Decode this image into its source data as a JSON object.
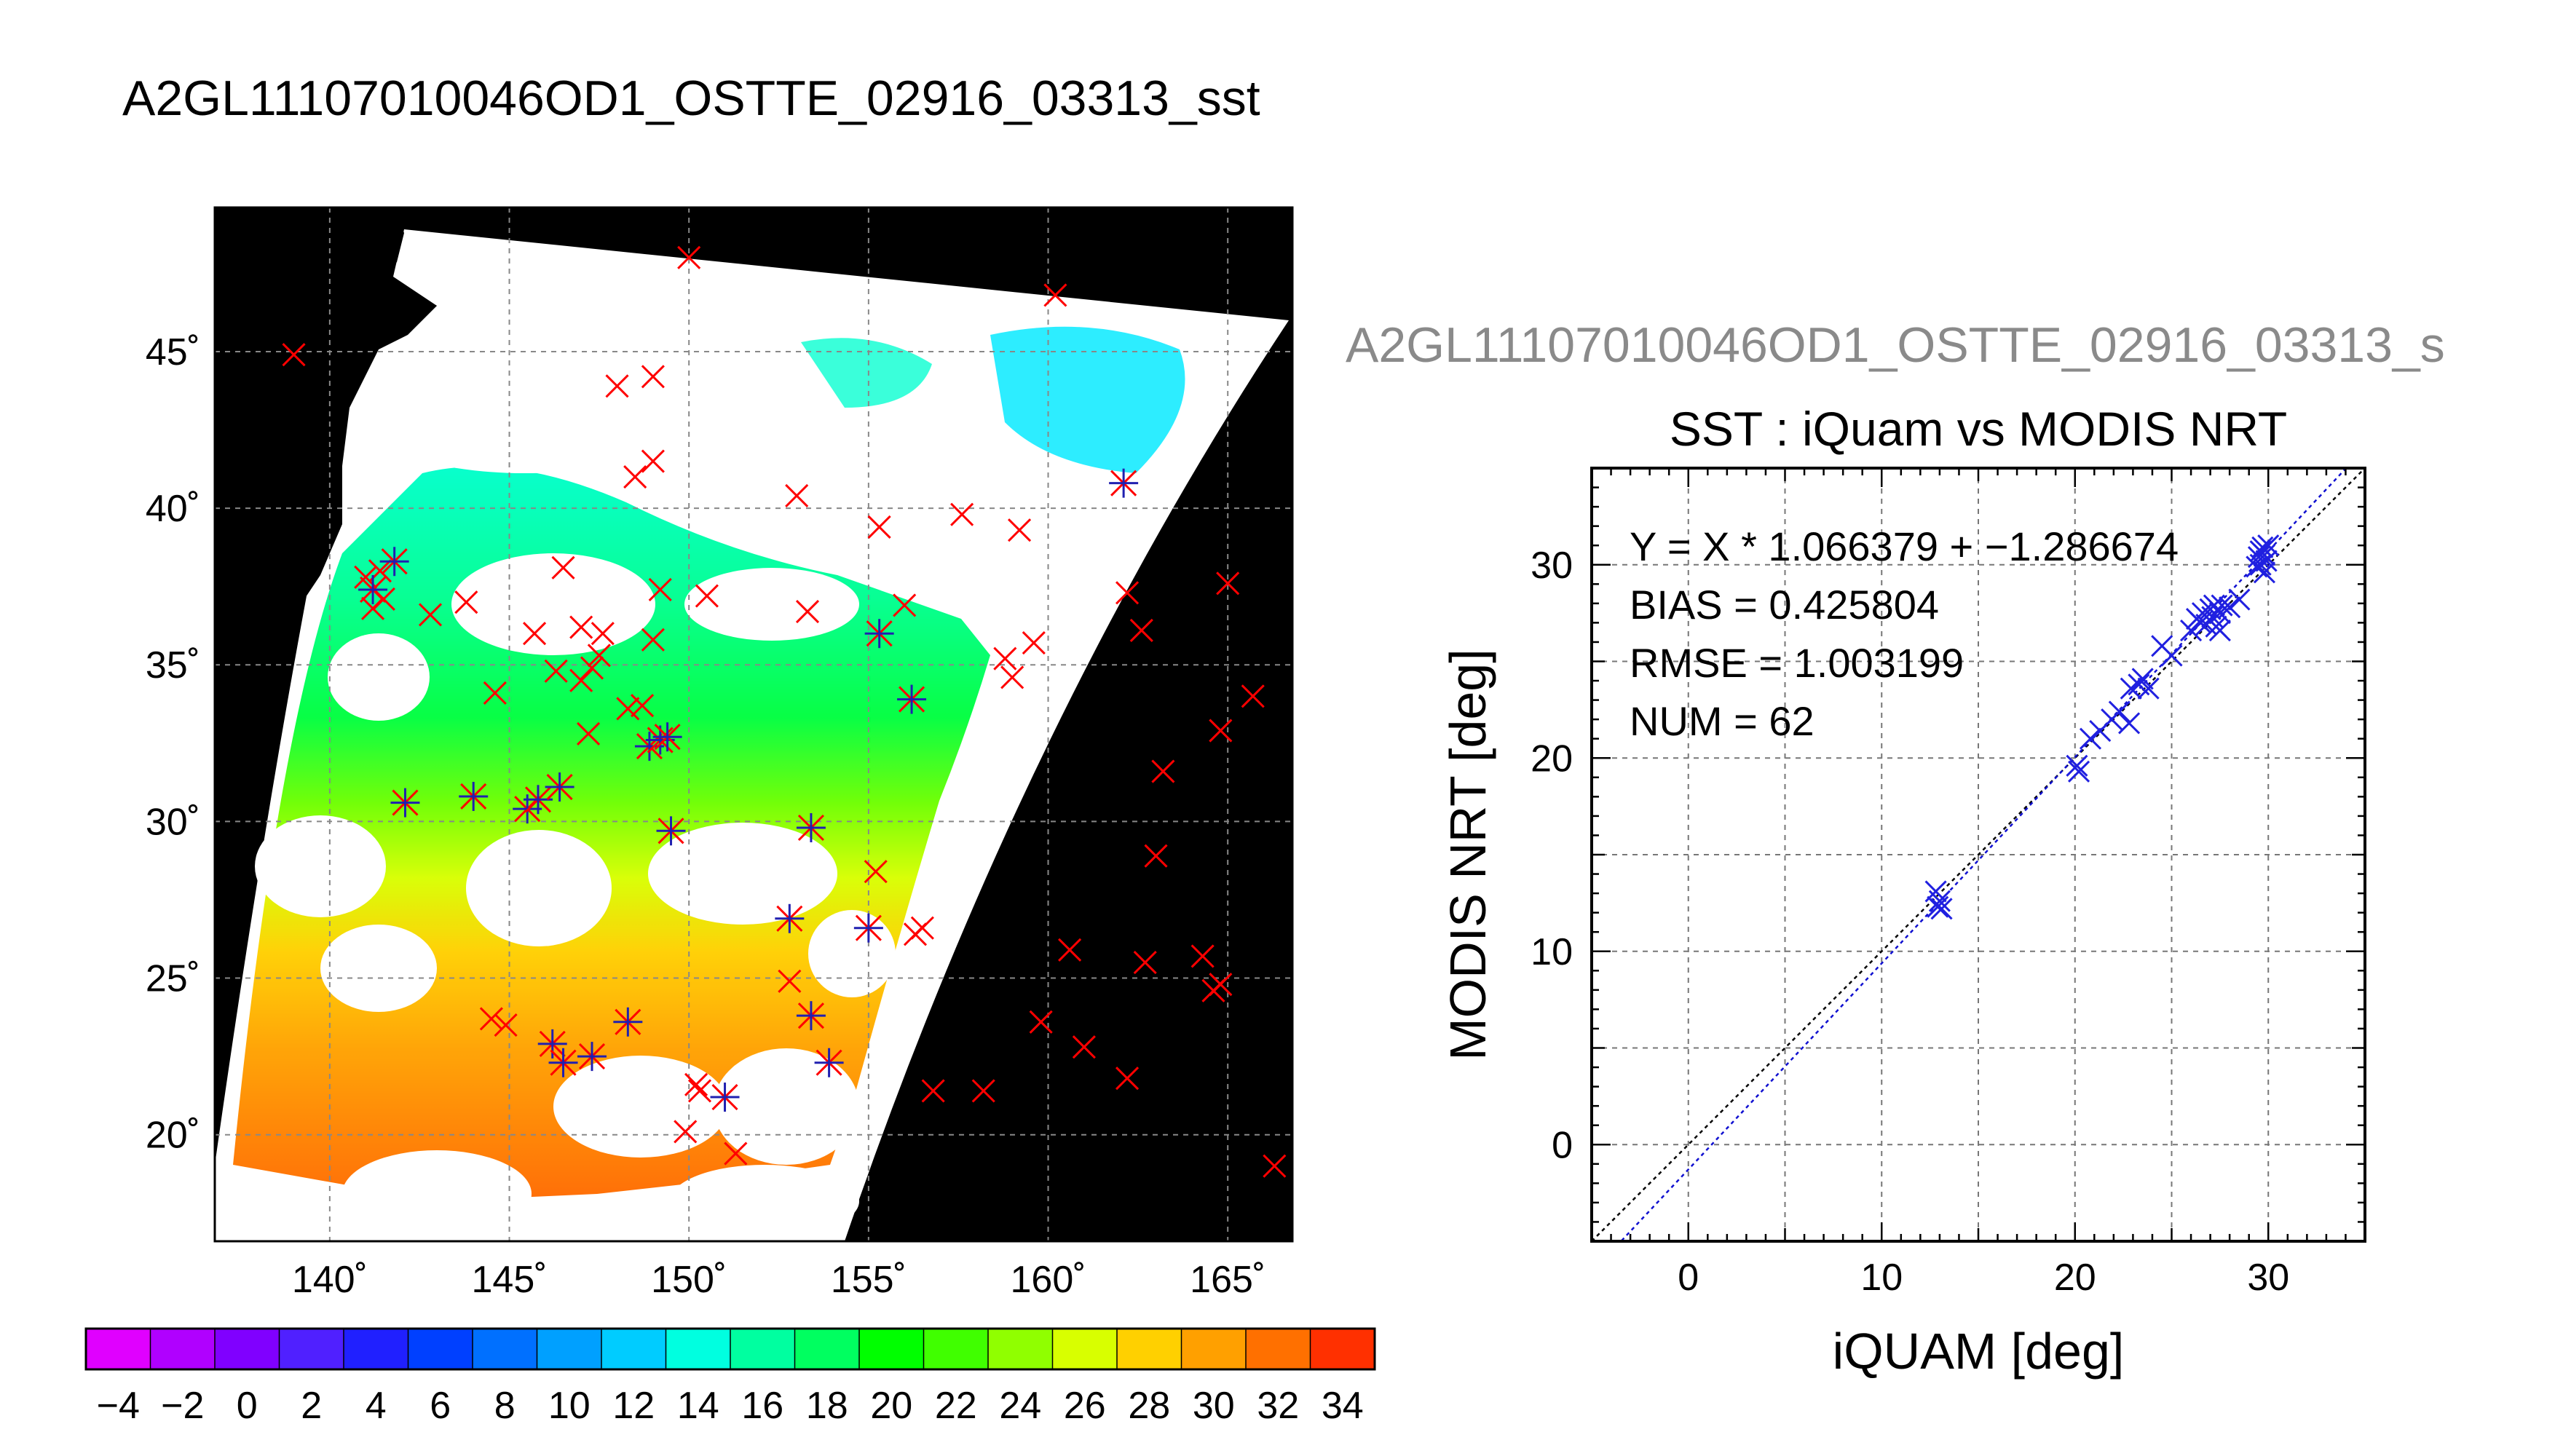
{
  "main_title": "A2GL11107010046OD1_OSTTE_02916_03313_sst",
  "chart_data": [
    {
      "type": "heatmap",
      "title": "",
      "x_ticks": [
        140,
        145,
        150,
        155,
        160,
        165
      ],
      "y_ticks": [
        20,
        25,
        30,
        35,
        40,
        45
      ],
      "x_tick_labels": [
        "140˚",
        "145˚",
        "150˚",
        "155˚",
        "160˚",
        "165˚"
      ],
      "y_tick_labels": [
        "20˚",
        "25˚",
        "30˚",
        "35˚",
        "40˚",
        "45˚"
      ],
      "xlim": [
        136.8,
        166.8
      ],
      "ylim": [
        16.6,
        49.6
      ],
      "grid": true,
      "background": "#000000",
      "colorbar": {
        "vmin": -5,
        "vmax": 35,
        "tick_labels": [
          "−4",
          "−2",
          "0",
          "2",
          "4",
          "6",
          "8",
          "10",
          "12",
          "14",
          "16",
          "18",
          "20",
          "22",
          "24",
          "26",
          "28",
          "30",
          "32",
          "34"
        ],
        "colors": [
          "#e000ff",
          "#b000ff",
          "#8000ff",
          "#5020ff",
          "#2020ff",
          "#0040ff",
          "#0070ff",
          "#00a0ff",
          "#00ccff",
          "#00ffe0",
          "#00ffa0",
          "#00ff60",
          "#00ff00",
          "#40ff00",
          "#90ff00",
          "#d8ff00",
          "#ffd000",
          "#ffa000",
          "#ff7000",
          "#ff3000"
        ]
      },
      "red_x_markers": [
        [
          139.0,
          44.9
        ],
        [
          150.0,
          48.0
        ],
        [
          160.2,
          46.8
        ],
        [
          148.0,
          43.9
        ],
        [
          149.0,
          44.2
        ],
        [
          148.5,
          41.0
        ],
        [
          149.0,
          41.5
        ],
        [
          153.0,
          40.4
        ],
        [
          155.3,
          39.4
        ],
        [
          157.6,
          39.8
        ],
        [
          159.2,
          39.3
        ],
        [
          146.5,
          38.1
        ],
        [
          149.2,
          37.4
        ],
        [
          150.5,
          37.2
        ],
        [
          141.0,
          37.8
        ],
        [
          141.4,
          38.0
        ],
        [
          141.5,
          37.1
        ],
        [
          141.2,
          36.8
        ],
        [
          142.8,
          36.6
        ],
        [
          143.8,
          37.0
        ],
        [
          145.7,
          36.0
        ],
        [
          147.0,
          36.2
        ],
        [
          147.6,
          36.0
        ],
        [
          149.0,
          35.8
        ],
        [
          153.3,
          36.7
        ],
        [
          156.0,
          36.9
        ],
        [
          158.8,
          35.2
        ],
        [
          159.6,
          35.7
        ],
        [
          162.2,
          37.3
        ],
        [
          162.6,
          36.1
        ],
        [
          165.0,
          37.6
        ],
        [
          144.6,
          34.1
        ],
        [
          146.3,
          34.8
        ],
        [
          147.0,
          34.5
        ],
        [
          147.3,
          34.9
        ],
        [
          147.5,
          35.3
        ],
        [
          148.3,
          33.6
        ],
        [
          148.7,
          33.7
        ],
        [
          147.2,
          32.8
        ],
        [
          159.0,
          34.6
        ],
        [
          164.8,
          32.9
        ],
        [
          165.7,
          34.0
        ],
        [
          163.2,
          31.6
        ],
        [
          163.0,
          28.9
        ],
        [
          155.2,
          28.4
        ],
        [
          156.3,
          26.4
        ],
        [
          156.5,
          26.6
        ],
        [
          152.8,
          24.9
        ],
        [
          160.6,
          25.9
        ],
        [
          162.7,
          25.5
        ],
        [
          164.3,
          25.7
        ],
        [
          164.6,
          24.6
        ],
        [
          164.8,
          24.8
        ],
        [
          159.8,
          23.6
        ],
        [
          161.0,
          22.8
        ],
        [
          162.2,
          21.8
        ],
        [
          156.8,
          21.4
        ],
        [
          158.2,
          21.4
        ],
        [
          150.3,
          21.4
        ],
        [
          149.9,
          20.1
        ],
        [
          151.3,
          19.4
        ],
        [
          166.3,
          19.0
        ],
        [
          144.5,
          23.7
        ],
        [
          144.9,
          23.5
        ],
        [
          150.2,
          21.6
        ]
      ],
      "matched_markers": [
        [
          141.8,
          38.3
        ],
        [
          141.2,
          37.4
        ],
        [
          142.1,
          30.6
        ],
        [
          144.0,
          30.8
        ],
        [
          145.5,
          30.4
        ],
        [
          145.8,
          30.7
        ],
        [
          146.4,
          31.1
        ],
        [
          148.9,
          32.4
        ],
        [
          149.2,
          32.6
        ],
        [
          149.4,
          32.7
        ],
        [
          149.5,
          29.7
        ],
        [
          153.4,
          29.8
        ],
        [
          152.8,
          26.9
        ],
        [
          155.0,
          26.6
        ],
        [
          155.3,
          36.0
        ],
        [
          156.2,
          33.9
        ],
        [
          146.2,
          22.9
        ],
        [
          146.5,
          22.3
        ],
        [
          147.3,
          22.5
        ],
        [
          148.3,
          23.6
        ],
        [
          151.0,
          21.2
        ],
        [
          153.4,
          23.8
        ],
        [
          153.9,
          22.3
        ],
        [
          162.1,
          40.8
        ]
      ]
    },
    {
      "type": "scatter",
      "header_text": "A2GL11107010046OD1_OSTTE_02916_03313_s",
      "title": "SST : iQuam vs MODIS NRT",
      "xlabel": "iQUAM [deg]",
      "ylabel": "MODIS NRT [deg]",
      "xlim": [
        -5,
        35
      ],
      "ylim": [
        -5,
        35
      ],
      "x_ticks": [
        0,
        10,
        20,
        30
      ],
      "y_ticks": [
        0,
        10,
        20,
        30
      ],
      "grid": true,
      "stats": [
        "Y = X * 1.066379 + −1.286674",
        "BIAS = 0.425804",
        "RMSE = 1.003199",
        "NUM = 62"
      ],
      "fit": {
        "slope": 1.066379,
        "intercept": -1.286674
      },
      "points": [
        [
          12.8,
          13.1
        ],
        [
          12.9,
          12.3
        ],
        [
          13.0,
          12.6
        ],
        [
          13.1,
          12.2
        ],
        [
          20.1,
          19.6
        ],
        [
          20.2,
          19.3
        ],
        [
          20.8,
          21.0
        ],
        [
          21.3,
          21.4
        ],
        [
          21.9,
          22.0
        ],
        [
          22.3,
          22.4
        ],
        [
          22.8,
          21.8
        ],
        [
          22.9,
          23.6
        ],
        [
          23.3,
          23.8
        ],
        [
          23.5,
          24.1
        ],
        [
          23.8,
          23.6
        ],
        [
          24.5,
          25.8
        ],
        [
          25.0,
          25.3
        ],
        [
          26.0,
          26.6
        ],
        [
          26.3,
          27.2
        ],
        [
          26.5,
          27.0
        ],
        [
          26.6,
          27.5
        ],
        [
          26.8,
          26.9
        ],
        [
          27.0,
          27.7
        ],
        [
          27.1,
          27.3
        ],
        [
          27.2,
          27.9
        ],
        [
          27.3,
          26.8
        ],
        [
          27.5,
          26.6
        ],
        [
          27.5,
          27.5
        ],
        [
          27.6,
          27.9
        ],
        [
          28.0,
          27.8
        ],
        [
          28.5,
          28.2
        ],
        [
          29.4,
          29.9
        ],
        [
          29.5,
          30.4
        ],
        [
          29.6,
          30.0
        ],
        [
          29.7,
          30.9
        ],
        [
          29.8,
          30.5
        ],
        [
          29.9,
          30.2
        ],
        [
          30.0,
          31.0
        ],
        [
          29.8,
          29.6
        ],
        [
          29.6,
          30.7
        ]
      ]
    }
  ]
}
